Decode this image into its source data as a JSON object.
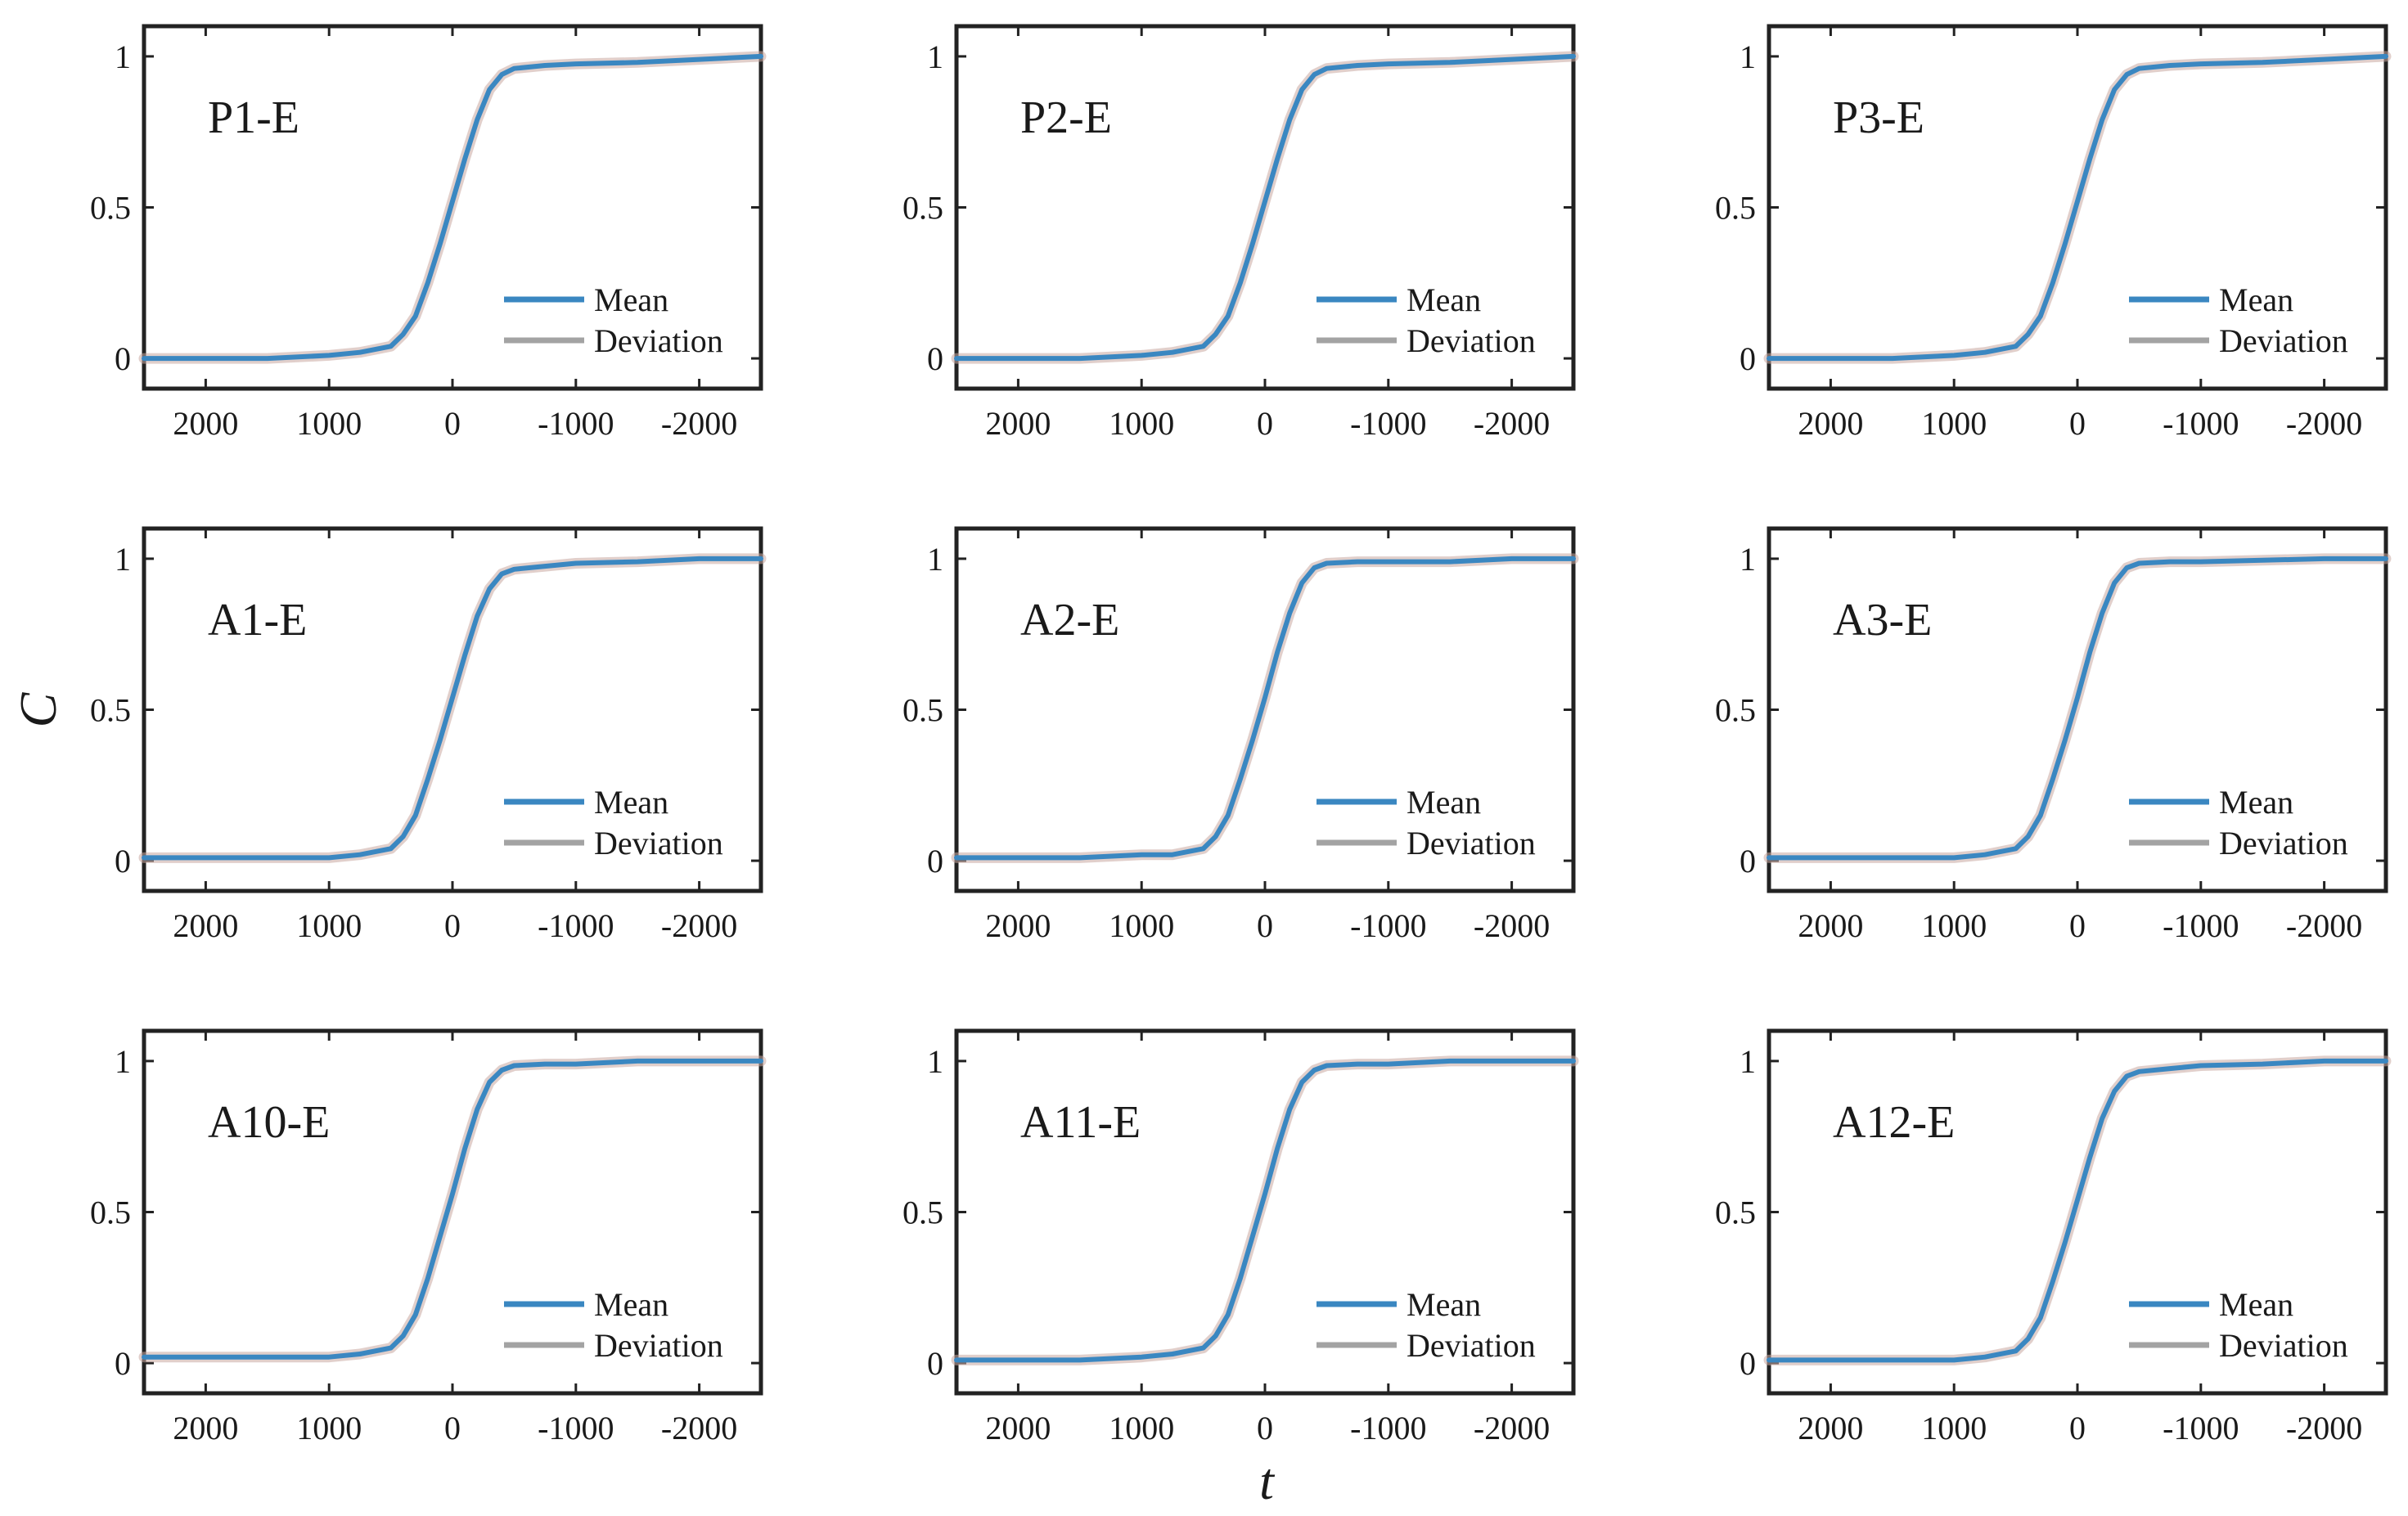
{
  "figure": {
    "ylabel": "C",
    "xlabel": "t",
    "colors": {
      "mean": "#3a87c1",
      "deviation": "#a3a3a3",
      "band": "#c9a7a0",
      "axis": "#222222"
    }
  },
  "chart_data": [
    {
      "type": "line",
      "title": "P1-E",
      "xlim": [
        2500,
        -2500
      ],
      "ylim": [
        -0.1,
        1.1
      ],
      "xticks": [
        2000,
        1000,
        0,
        -1000,
        -2000
      ],
      "xtick_labels": [
        "2000",
        "1000",
        "0",
        "-1000",
        "-2000"
      ],
      "yticks": [
        0,
        0.5,
        1
      ],
      "ytick_labels": [
        "0",
        "0.5",
        "1"
      ],
      "legend": {
        "position": "lower-right",
        "entries": [
          "Mean",
          "Deviation"
        ]
      },
      "series": [
        {
          "name": "Mean",
          "x": [
            2500,
            2000,
            1500,
            1000,
            750,
            500,
            400,
            300,
            200,
            100,
            0,
            -100,
            -200,
            -300,
            -400,
            -500,
            -750,
            -1000,
            -1500,
            -2000,
            -2500
          ],
          "values": [
            0.0,
            0.0,
            0.0,
            0.01,
            0.02,
            0.04,
            0.08,
            0.14,
            0.25,
            0.38,
            0.52,
            0.66,
            0.79,
            0.89,
            0.94,
            0.96,
            0.97,
            0.975,
            0.98,
            0.99,
            1.0
          ]
        }
      ]
    },
    {
      "type": "line",
      "title": "P2-E",
      "xlim": [
        2500,
        -2500
      ],
      "ylim": [
        -0.1,
        1.1
      ],
      "xticks": [
        2000,
        1000,
        0,
        -1000,
        -2000
      ],
      "xtick_labels": [
        "2000",
        "1000",
        "0",
        "-1000",
        "-2000"
      ],
      "yticks": [
        0,
        0.5,
        1
      ],
      "ytick_labels": [
        "0",
        "0.5",
        "1"
      ],
      "legend": {
        "position": "lower-right",
        "entries": [
          "Mean",
          "Deviation"
        ]
      },
      "series": [
        {
          "name": "Mean",
          "x": [
            2500,
            2000,
            1500,
            1000,
            750,
            500,
            400,
            300,
            200,
            100,
            0,
            -100,
            -200,
            -300,
            -400,
            -500,
            -750,
            -1000,
            -1500,
            -2000,
            -2500
          ],
          "values": [
            0.0,
            0.0,
            0.0,
            0.01,
            0.02,
            0.04,
            0.08,
            0.14,
            0.25,
            0.38,
            0.52,
            0.66,
            0.79,
            0.89,
            0.94,
            0.96,
            0.97,
            0.975,
            0.98,
            0.99,
            1.0
          ]
        }
      ]
    },
    {
      "type": "line",
      "title": "P3-E",
      "xlim": [
        2500,
        -2500
      ],
      "ylim": [
        -0.1,
        1.1
      ],
      "xticks": [
        2000,
        1000,
        0,
        -1000,
        -2000
      ],
      "xtick_labels": [
        "2000",
        "1000",
        "0",
        "-1000",
        "-2000"
      ],
      "yticks": [
        0,
        0.5,
        1
      ],
      "ytick_labels": [
        "0",
        "0.5",
        "1"
      ],
      "legend": {
        "position": "lower-right",
        "entries": [
          "Mean",
          "Deviation"
        ]
      },
      "series": [
        {
          "name": "Mean",
          "x": [
            2500,
            2000,
            1500,
            1000,
            750,
            500,
            400,
            300,
            200,
            100,
            0,
            -100,
            -200,
            -300,
            -400,
            -500,
            -750,
            -1000,
            -1500,
            -2000,
            -2500
          ],
          "values": [
            0.0,
            0.0,
            0.0,
            0.01,
            0.02,
            0.04,
            0.08,
            0.14,
            0.25,
            0.38,
            0.52,
            0.66,
            0.79,
            0.89,
            0.94,
            0.96,
            0.97,
            0.975,
            0.98,
            0.99,
            1.0
          ]
        }
      ]
    },
    {
      "type": "line",
      "title": "A1-E",
      "xlim": [
        2500,
        -2500
      ],
      "ylim": [
        -0.1,
        1.1
      ],
      "xticks": [
        2000,
        1000,
        0,
        -1000,
        -2000
      ],
      "xtick_labels": [
        "2000",
        "1000",
        "0",
        "-1000",
        "-2000"
      ],
      "yticks": [
        0,
        0.5,
        1
      ],
      "ytick_labels": [
        "0",
        "0.5",
        "1"
      ],
      "legend": {
        "position": "lower-right",
        "entries": [
          "Mean",
          "Deviation"
        ]
      },
      "series": [
        {
          "name": "Mean",
          "x": [
            2500,
            2000,
            1500,
            1000,
            750,
            500,
            400,
            300,
            200,
            100,
            0,
            -100,
            -200,
            -300,
            -400,
            -500,
            -750,
            -1000,
            -1500,
            -2000,
            -2500
          ],
          "values": [
            0.01,
            0.01,
            0.01,
            0.01,
            0.02,
            0.04,
            0.08,
            0.15,
            0.27,
            0.4,
            0.54,
            0.68,
            0.81,
            0.9,
            0.95,
            0.965,
            0.975,
            0.985,
            0.99,
            1.0,
            1.0
          ]
        }
      ]
    },
    {
      "type": "line",
      "title": "A2-E",
      "xlim": [
        2500,
        -2500
      ],
      "ylim": [
        -0.1,
        1.1
      ],
      "xticks": [
        2000,
        1000,
        0,
        -1000,
        -2000
      ],
      "xtick_labels": [
        "2000",
        "1000",
        "0",
        "-1000",
        "-2000"
      ],
      "yticks": [
        0,
        0.5,
        1
      ],
      "ytick_labels": [
        "0",
        "0.5",
        "1"
      ],
      "legend": {
        "position": "lower-right",
        "entries": [
          "Mean",
          "Deviation"
        ]
      },
      "series": [
        {
          "name": "Mean",
          "x": [
            2500,
            2000,
            1500,
            1000,
            750,
            500,
            400,
            300,
            200,
            100,
            0,
            -100,
            -200,
            -300,
            -400,
            -500,
            -750,
            -1000,
            -1500,
            -2000,
            -2500
          ],
          "values": [
            0.01,
            0.01,
            0.01,
            0.02,
            0.02,
            0.04,
            0.08,
            0.15,
            0.27,
            0.4,
            0.54,
            0.69,
            0.82,
            0.92,
            0.97,
            0.985,
            0.99,
            0.99,
            0.99,
            1.0,
            1.0
          ]
        }
      ]
    },
    {
      "type": "line",
      "title": "A3-E",
      "xlim": [
        2500,
        -2500
      ],
      "ylim": [
        -0.1,
        1.1
      ],
      "xticks": [
        2000,
        1000,
        0,
        -1000,
        -2000
      ],
      "xtick_labels": [
        "2000",
        "1000",
        "0",
        "-1000",
        "-2000"
      ],
      "yticks": [
        0,
        0.5,
        1
      ],
      "ytick_labels": [
        "0",
        "0.5",
        "1"
      ],
      "legend": {
        "position": "lower-right",
        "entries": [
          "Mean",
          "Deviation"
        ]
      },
      "series": [
        {
          "name": "Mean",
          "x": [
            2500,
            2000,
            1500,
            1000,
            750,
            500,
            400,
            300,
            200,
            100,
            0,
            -100,
            -200,
            -300,
            -400,
            -500,
            -750,
            -1000,
            -1500,
            -2000,
            -2500
          ],
          "values": [
            0.01,
            0.01,
            0.01,
            0.01,
            0.02,
            0.04,
            0.08,
            0.15,
            0.27,
            0.4,
            0.54,
            0.69,
            0.82,
            0.92,
            0.97,
            0.985,
            0.99,
            0.99,
            0.995,
            1.0,
            1.0
          ]
        }
      ]
    },
    {
      "type": "line",
      "title": "A10-E",
      "xlim": [
        2500,
        -2500
      ],
      "ylim": [
        -0.1,
        1.1
      ],
      "xticks": [
        2000,
        1000,
        0,
        -1000,
        -2000
      ],
      "xtick_labels": [
        "2000",
        "1000",
        "0",
        "-1000",
        "-2000"
      ],
      "yticks": [
        0,
        0.5,
        1
      ],
      "ytick_labels": [
        "0",
        "0.5",
        "1"
      ],
      "legend": {
        "position": "lower-right",
        "entries": [
          "Mean",
          "Deviation"
        ]
      },
      "series": [
        {
          "name": "Mean",
          "x": [
            2500,
            2000,
            1500,
            1000,
            750,
            500,
            400,
            300,
            200,
            100,
            0,
            -100,
            -200,
            -300,
            -400,
            -500,
            -750,
            -1000,
            -1500,
            -2000,
            -2500
          ],
          "values": [
            0.02,
            0.02,
            0.02,
            0.02,
            0.03,
            0.05,
            0.09,
            0.16,
            0.28,
            0.42,
            0.56,
            0.71,
            0.84,
            0.93,
            0.97,
            0.985,
            0.99,
            0.99,
            1.0,
            1.0,
            1.0
          ]
        }
      ]
    },
    {
      "type": "line",
      "title": "A11-E",
      "xlim": [
        2500,
        -2500
      ],
      "ylim": [
        -0.1,
        1.1
      ],
      "xticks": [
        2000,
        1000,
        0,
        -1000,
        -2000
      ],
      "xtick_labels": [
        "2000",
        "1000",
        "0",
        "-1000",
        "-2000"
      ],
      "yticks": [
        0,
        0.5,
        1
      ],
      "ytick_labels": [
        "0",
        "0.5",
        "1"
      ],
      "legend": {
        "position": "lower-right",
        "entries": [
          "Mean",
          "Deviation"
        ]
      },
      "series": [
        {
          "name": "Mean",
          "x": [
            2500,
            2000,
            1500,
            1000,
            750,
            500,
            400,
            300,
            200,
            100,
            0,
            -100,
            -200,
            -300,
            -400,
            -500,
            -750,
            -1000,
            -1500,
            -2000,
            -2500
          ],
          "values": [
            0.01,
            0.01,
            0.01,
            0.02,
            0.03,
            0.05,
            0.09,
            0.16,
            0.28,
            0.42,
            0.56,
            0.71,
            0.84,
            0.93,
            0.97,
            0.985,
            0.99,
            0.99,
            1.0,
            1.0,
            1.0
          ]
        }
      ]
    },
    {
      "type": "line",
      "title": "A12-E",
      "xlim": [
        2500,
        -2500
      ],
      "ylim": [
        -0.1,
        1.1
      ],
      "xticks": [
        2000,
        1000,
        0,
        -1000,
        -2000
      ],
      "xtick_labels": [
        "2000",
        "1000",
        "0",
        "-1000",
        "-2000"
      ],
      "yticks": [
        0,
        0.5,
        1
      ],
      "ytick_labels": [
        "0",
        "0.5",
        "1"
      ],
      "legend": {
        "position": "lower-right",
        "entries": [
          "Mean",
          "Deviation"
        ]
      },
      "series": [
        {
          "name": "Mean",
          "x": [
            2500,
            2000,
            1500,
            1000,
            750,
            500,
            400,
            300,
            200,
            100,
            0,
            -100,
            -200,
            -300,
            -400,
            -500,
            -750,
            -1000,
            -1500,
            -2000,
            -2500
          ],
          "values": [
            0.01,
            0.01,
            0.01,
            0.01,
            0.02,
            0.04,
            0.08,
            0.15,
            0.27,
            0.4,
            0.54,
            0.68,
            0.81,
            0.9,
            0.95,
            0.965,
            0.975,
            0.985,
            0.99,
            1.0,
            1.0
          ]
        }
      ]
    }
  ]
}
